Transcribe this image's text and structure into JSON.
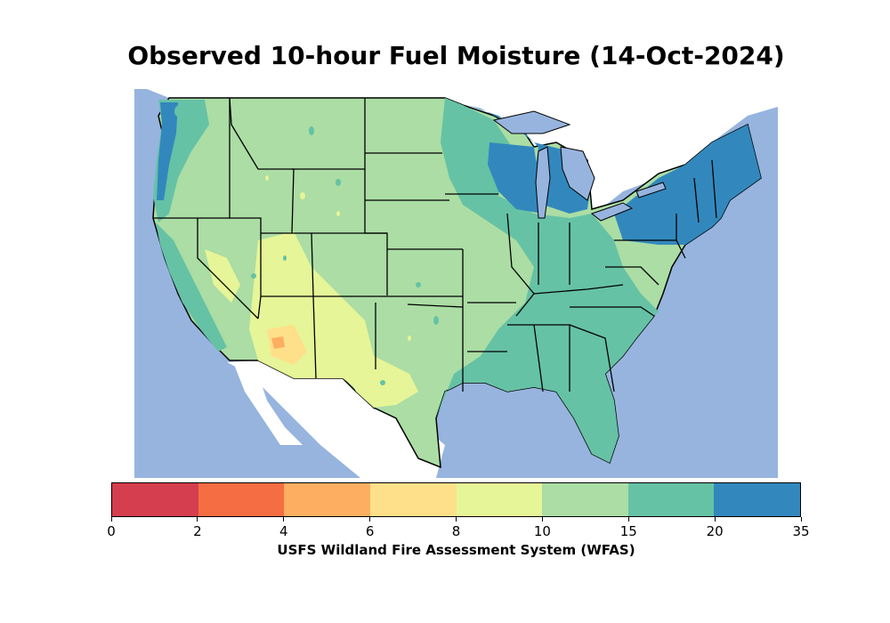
{
  "title": "Observed 10-hour Fuel Moisture (14-Oct-2024)",
  "colorbar": {
    "title": "USFS Wildland Fire Assessment System (WFAS)",
    "ticks": [
      "0",
      "2",
      "4",
      "6",
      "8",
      "10",
      "15",
      "20",
      "35"
    ],
    "colors": [
      "#d53e4f",
      "#f46d43",
      "#fdae61",
      "#fee08b",
      "#e6f598",
      "#abdda4",
      "#66c2a5",
      "#3288bd"
    ]
  },
  "map_colors": {
    "water": "#97b4df",
    "land_bg": "#ffffff"
  }
}
